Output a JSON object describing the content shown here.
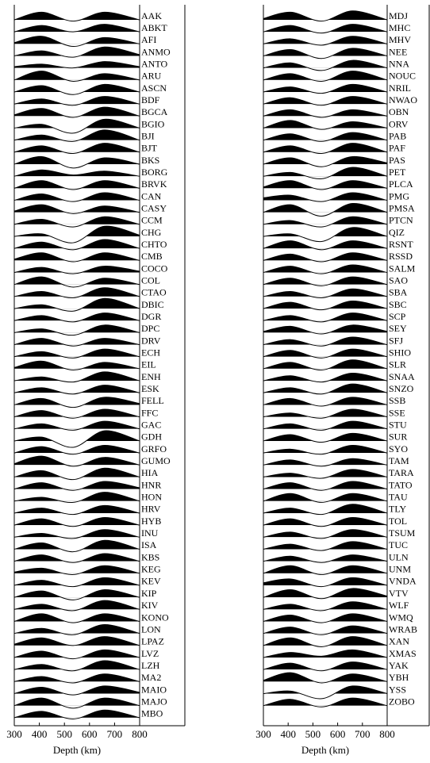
{
  "chart_data": [
    {
      "type": "wiggle",
      "xlabel": "Depth (km)",
      "xlim": [
        300,
        800
      ],
      "xticks": [
        300,
        400,
        500,
        600,
        700,
        800
      ],
      "color": "#000000",
      "x": [
        300,
        410,
        535,
        660,
        800
      ],
      "series": [
        {
          "name": "AAK",
          "values": [
            0,
            0.6,
            -0.1,
            0.6,
            0
          ]
        },
        {
          "name": "ABKT",
          "values": [
            0,
            0.5,
            0,
            0.6,
            0
          ]
        },
        {
          "name": "AFI",
          "values": [
            0.1,
            0.6,
            -0.2,
            0.5,
            0
          ]
        },
        {
          "name": "ANMO",
          "values": [
            0,
            0.4,
            -0.1,
            0.7,
            0.1
          ]
        },
        {
          "name": "ANTO",
          "values": [
            0.1,
            0.3,
            0,
            0.5,
            0.1
          ]
        },
        {
          "name": "ARU",
          "values": [
            0,
            0.7,
            -0.1,
            0.5,
            0
          ]
        },
        {
          "name": "ASCN",
          "values": [
            0,
            0.5,
            -0.2,
            0.6,
            0
          ]
        },
        {
          "name": "BDF",
          "values": [
            0,
            0.4,
            -0.1,
            0.6,
            0
          ]
        },
        {
          "name": "BGCA",
          "values": [
            0.1,
            0.6,
            -0.1,
            0.7,
            0
          ]
        },
        {
          "name": "BGIO",
          "values": [
            0,
            0.3,
            -0.4,
            0.7,
            0
          ]
        },
        {
          "name": "BJI",
          "values": [
            0,
            0.4,
            -0.1,
            0.8,
            0
          ]
        },
        {
          "name": "BJT",
          "values": [
            0,
            0.5,
            -0.1,
            0.7,
            0
          ]
        },
        {
          "name": "BKS",
          "values": [
            0,
            0.6,
            -0.3,
            0.5,
            0
          ]
        },
        {
          "name": "BORG",
          "values": [
            0,
            0.5,
            0.1,
            0.4,
            0
          ]
        },
        {
          "name": "BRVK",
          "values": [
            0,
            0.6,
            -0.1,
            0.6,
            0
          ]
        },
        {
          "name": "CAN",
          "values": [
            0,
            0.5,
            -0.1,
            0.6,
            0
          ]
        },
        {
          "name": "CASY",
          "values": [
            0.1,
            0.6,
            -0.1,
            0.5,
            0
          ]
        },
        {
          "name": "CCM",
          "values": [
            0,
            0.4,
            -0.2,
            0.6,
            0
          ]
        },
        {
          "name": "CHG",
          "values": [
            0,
            0.2,
            -0.5,
            0.8,
            0.1
          ]
        },
        {
          "name": "CHTO",
          "values": [
            0,
            0.5,
            -0.1,
            0.7,
            0
          ]
        },
        {
          "name": "CMB",
          "values": [
            0.1,
            0.6,
            -0.1,
            0.6,
            0
          ]
        },
        {
          "name": "COCO",
          "values": [
            0,
            0.4,
            -0.1,
            0.5,
            0.1
          ]
        },
        {
          "name": "COL",
          "values": [
            0,
            0.6,
            -0.2,
            0.5,
            0
          ]
        },
        {
          "name": "CTAO",
          "values": [
            0,
            0.4,
            -0.1,
            0.7,
            0
          ]
        },
        {
          "name": "DBIC",
          "values": [
            0,
            0.3,
            -0.2,
            0.8,
            0
          ]
        },
        {
          "name": "DGR",
          "values": [
            0,
            0.4,
            -0.1,
            0.6,
            0
          ]
        },
        {
          "name": "DPC",
          "values": [
            0,
            0.3,
            -0.2,
            0.6,
            0
          ]
        },
        {
          "name": "DRV",
          "values": [
            0,
            0.5,
            -0.1,
            0.5,
            0
          ]
        },
        {
          "name": "ECH",
          "values": [
            0,
            0.4,
            -0.1,
            0.6,
            0
          ]
        },
        {
          "name": "EIL",
          "values": [
            0.1,
            0.6,
            -0.1,
            0.5,
            0
          ]
        },
        {
          "name": "ENH",
          "values": [
            0,
            0.3,
            -0.1,
            0.7,
            0
          ]
        },
        {
          "name": "ESK",
          "values": [
            0,
            0.4,
            -0.1,
            0.6,
            0
          ]
        },
        {
          "name": "FELL",
          "values": [
            0,
            0.5,
            -0.2,
            0.6,
            0.1
          ]
        },
        {
          "name": "FFC",
          "values": [
            0,
            0.5,
            -0.1,
            0.6,
            0
          ]
        },
        {
          "name": "GAC",
          "values": [
            0,
            0.4,
            -0.1,
            0.6,
            0
          ]
        },
        {
          "name": "GDH",
          "values": [
            0,
            0.3,
            -0.5,
            0.8,
            0
          ]
        },
        {
          "name": "GRFO",
          "values": [
            0,
            0.5,
            -0.1,
            0.6,
            0
          ]
        },
        {
          "name": "GUMO",
          "values": [
            0.1,
            0.7,
            -0.1,
            0.6,
            0
          ]
        },
        {
          "name": "HIA",
          "values": [
            0,
            0.5,
            -0.2,
            0.7,
            0
          ]
        },
        {
          "name": "HNR",
          "values": [
            0,
            0.5,
            -0.1,
            0.6,
            0.1
          ]
        },
        {
          "name": "HON",
          "values": [
            0,
            0.3,
            -0.1,
            0.7,
            0
          ]
        },
        {
          "name": "HRV",
          "values": [
            0,
            0.4,
            -0.1,
            0.6,
            0
          ]
        },
        {
          "name": "HYB",
          "values": [
            0,
            0.5,
            -0.1,
            0.6,
            0
          ]
        },
        {
          "name": "INU",
          "values": [
            0,
            0.3,
            -0.1,
            0.6,
            0
          ]
        },
        {
          "name": "ISA",
          "values": [
            0,
            0.5,
            -0.2,
            0.7,
            0
          ]
        },
        {
          "name": "KBS",
          "values": [
            0,
            0.5,
            -0.1,
            0.6,
            0
          ]
        },
        {
          "name": "KEG",
          "values": [
            0.1,
            0.4,
            -0.1,
            0.6,
            0
          ]
        },
        {
          "name": "KEV",
          "values": [
            0,
            0.4,
            -0.1,
            0.6,
            0
          ]
        },
        {
          "name": "KIP",
          "values": [
            0,
            0.5,
            -0.2,
            0.6,
            0
          ]
        },
        {
          "name": "KIV",
          "values": [
            0,
            0.4,
            -0.1,
            0.7,
            0
          ]
        },
        {
          "name": "KONO",
          "values": [
            0,
            0.6,
            -0.1,
            0.6,
            0
          ]
        },
        {
          "name": "LON",
          "values": [
            0,
            0.4,
            -0.1,
            0.7,
            0
          ]
        },
        {
          "name": "LPAZ",
          "values": [
            0.1,
            0.6,
            0,
            0.7,
            0
          ]
        },
        {
          "name": "LVZ",
          "values": [
            0,
            0.5,
            -0.1,
            0.6,
            0
          ]
        },
        {
          "name": "LZH",
          "values": [
            0,
            0.4,
            -0.1,
            0.7,
            0
          ]
        },
        {
          "name": "MA2",
          "values": [
            0,
            0.4,
            -0.1,
            0.6,
            0
          ]
        },
        {
          "name": "MAIO",
          "values": [
            0,
            0.5,
            -0.1,
            0.6,
            0.1
          ]
        },
        {
          "name": "MAJO",
          "values": [
            0,
            0.6,
            -0.2,
            0.6,
            0
          ]
        },
        {
          "name": "MBO",
          "values": [
            0,
            0.5,
            -0.1,
            0.6,
            0
          ]
        }
      ]
    },
    {
      "type": "wiggle",
      "xlabel": "Depth (km)",
      "xlim": [
        300,
        800
      ],
      "xticks": [
        300,
        400,
        500,
        600,
        700,
        800
      ],
      "color": "#000000",
      "x": [
        300,
        410,
        535,
        660,
        800
      ],
      "series": [
        {
          "name": "MDJ",
          "values": [
            0.1,
            0.6,
            -0.1,
            0.7,
            0
          ]
        },
        {
          "name": "MHC",
          "values": [
            0,
            0.5,
            -0.1,
            0.6,
            0
          ]
        },
        {
          "name": "MHV",
          "values": [
            0,
            0.4,
            -0.1,
            0.6,
            0
          ]
        },
        {
          "name": "NEE",
          "values": [
            0,
            0.5,
            -0.2,
            0.6,
            0
          ]
        },
        {
          "name": "NNA",
          "values": [
            0,
            0.4,
            -0.2,
            0.6,
            0
          ]
        },
        {
          "name": "NOUC",
          "values": [
            0,
            0.5,
            -0.1,
            0.7,
            0
          ]
        },
        {
          "name": "NRIL",
          "values": [
            0,
            0.4,
            -0.1,
            0.6,
            0
          ]
        },
        {
          "name": "NWAO",
          "values": [
            0,
            0.5,
            -0.1,
            0.6,
            0
          ]
        },
        {
          "name": "OBN",
          "values": [
            0,
            0.5,
            -0.1,
            0.5,
            0
          ]
        },
        {
          "name": "ORV",
          "values": [
            0,
            0.6,
            -0.1,
            0.5,
            0
          ]
        },
        {
          "name": "PAB",
          "values": [
            0,
            0.5,
            -0.1,
            0.6,
            0
          ]
        },
        {
          "name": "PAF",
          "values": [
            0,
            0.5,
            -0.1,
            0.7,
            0
          ]
        },
        {
          "name": "PAS",
          "values": [
            0,
            0.5,
            -0.2,
            0.6,
            0.1
          ]
        },
        {
          "name": "PET",
          "values": [
            0,
            0.3,
            -0.2,
            0.7,
            0
          ]
        },
        {
          "name": "PLCA",
          "values": [
            0.1,
            0.6,
            -0.1,
            0.6,
            0
          ]
        },
        {
          "name": "PMG",
          "values": [
            0.2,
            0.4,
            -0.1,
            0.6,
            0
          ]
        },
        {
          "name": "PMSA",
          "values": [
            0,
            0.6,
            -0.3,
            0.7,
            0
          ]
        },
        {
          "name": "PTCN",
          "values": [
            0,
            0.3,
            -0.2,
            0.6,
            0
          ]
        },
        {
          "name": "QIZ",
          "values": [
            0,
            0.2,
            -0.4,
            0.7,
            0
          ]
        },
        {
          "name": "RSNT",
          "values": [
            0,
            0.6,
            -0.1,
            0.6,
            0
          ]
        },
        {
          "name": "RSSD",
          "values": [
            0,
            0.5,
            -0.1,
            0.6,
            0
          ]
        },
        {
          "name": "SALM",
          "values": [
            0,
            0.5,
            -0.1,
            0.6,
            0
          ]
        },
        {
          "name": "SAO",
          "values": [
            0,
            0.5,
            -0.1,
            0.6,
            0
          ]
        },
        {
          "name": "SBA",
          "values": [
            0,
            0.4,
            -0.1,
            0.6,
            0
          ]
        },
        {
          "name": "SBC",
          "values": [
            0,
            0.5,
            -0.1,
            0.6,
            0
          ]
        },
        {
          "name": "SCP",
          "values": [
            0,
            0.4,
            -0.1,
            0.6,
            0
          ]
        },
        {
          "name": "SEY",
          "values": [
            0.1,
            0.5,
            -0.1,
            0.6,
            0.1
          ]
        },
        {
          "name": "SFJ",
          "values": [
            0,
            0.4,
            -0.1,
            0.6,
            0
          ]
        },
        {
          "name": "SHIO",
          "values": [
            0,
            0.5,
            -0.1,
            0.6,
            0
          ]
        },
        {
          "name": "SLR",
          "values": [
            0,
            0.5,
            -0.1,
            0.7,
            0
          ]
        },
        {
          "name": "SNAA",
          "values": [
            0,
            0.4,
            -0.1,
            0.6,
            0
          ]
        },
        {
          "name": "SNZO",
          "values": [
            0,
            0.4,
            -0.1,
            0.7,
            0
          ]
        },
        {
          "name": "SSB",
          "values": [
            0,
            0.5,
            -0.1,
            0.6,
            0
          ]
        },
        {
          "name": "SSE",
          "values": [
            0,
            0.3,
            -0.1,
            0.6,
            0
          ]
        },
        {
          "name": "STU",
          "values": [
            0,
            0.4,
            -0.1,
            0.6,
            0
          ]
        },
        {
          "name": "SUR",
          "values": [
            0,
            0.5,
            -0.1,
            0.6,
            0
          ]
        },
        {
          "name": "SYO",
          "values": [
            0,
            0.3,
            -0.1,
            0.6,
            0
          ]
        },
        {
          "name": "TAM",
          "values": [
            0,
            0.4,
            -0.1,
            0.5,
            0
          ]
        },
        {
          "name": "TARA",
          "values": [
            0,
            0.3,
            -0.1,
            0.6,
            0
          ]
        },
        {
          "name": "TATO",
          "values": [
            0,
            0.5,
            -0.1,
            0.6,
            0
          ]
        },
        {
          "name": "TAU",
          "values": [
            0,
            0.6,
            -0.1,
            0.6,
            0
          ]
        },
        {
          "name": "TLY",
          "values": [
            0,
            0.4,
            -0.1,
            0.7,
            0
          ]
        },
        {
          "name": "TOL",
          "values": [
            0,
            0.5,
            -0.1,
            0.6,
            0
          ]
        },
        {
          "name": "TSUM",
          "values": [
            0,
            0.4,
            -0.1,
            0.6,
            0
          ]
        },
        {
          "name": "TUC",
          "values": [
            0,
            0.4,
            -0.1,
            0.6,
            0
          ]
        },
        {
          "name": "ULN",
          "values": [
            0,
            0.4,
            -0.1,
            0.5,
            0
          ]
        },
        {
          "name": "UNM",
          "values": [
            0,
            0.6,
            -0.1,
            0.6,
            0
          ]
        },
        {
          "name": "VNDA",
          "values": [
            0.2,
            0.5,
            -0.1,
            0.6,
            0
          ]
        },
        {
          "name": "VTV",
          "values": [
            0,
            0.6,
            -0.1,
            0.7,
            0.1
          ]
        },
        {
          "name": "WLF",
          "values": [
            0,
            0.4,
            -0.1,
            0.6,
            0
          ]
        },
        {
          "name": "WMQ",
          "values": [
            0,
            0.5,
            -0.1,
            0.6,
            0
          ]
        },
        {
          "name": "WRAB",
          "values": [
            0,
            0.5,
            -0.1,
            0.6,
            0
          ]
        },
        {
          "name": "XAN",
          "values": [
            0,
            0.6,
            -0.1,
            0.7,
            0
          ]
        },
        {
          "name": "XMAS",
          "values": [
            0,
            0.4,
            0.1,
            0.6,
            0
          ]
        },
        {
          "name": "YAK",
          "values": [
            0,
            0.5,
            -0.1,
            0.6,
            0
          ]
        },
        {
          "name": "YBH",
          "values": [
            0.1,
            0.7,
            -0.1,
            0.6,
            0
          ]
        },
        {
          "name": "YSS",
          "values": [
            0,
            0.2,
            -0.4,
            0.6,
            0
          ]
        },
        {
          "name": "ZOBO",
          "values": [
            0,
            0.5,
            -0.1,
            0.6,
            0
          ]
        }
      ]
    }
  ]
}
